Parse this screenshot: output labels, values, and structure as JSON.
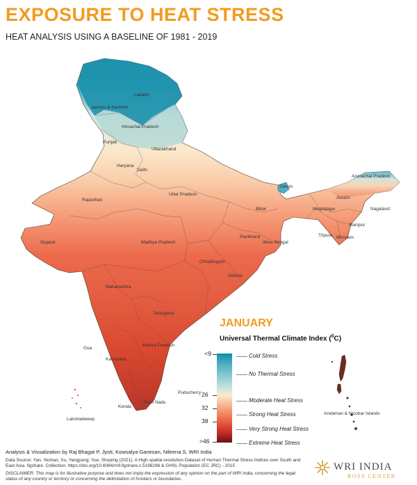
{
  "title": "EXPOSURE TO HEAT STRESS",
  "subtitle": "HEAT ANALYSIS USING A BASELINE OF 1981 - 2019",
  "month": "JANUARY",
  "legend": {
    "title": "Universal Thermal Climate Index (",
    "unit_sup": "0",
    "unit_tail": "C)",
    "ticks": [
      "<9",
      "26",
      "32",
      "38",
      ">46"
    ],
    "categories": [
      "Cold Stress",
      "No Thermal Stress",
      "Moderate Heat Stress",
      "Strong Heat Stress",
      "Very Strong Heat Stress",
      "Extreme Heat Stress"
    ],
    "colors": {
      "cold": "#0f8fa8",
      "neutral": "#fbe9cc",
      "moderate": "#f7b58f",
      "strong": "#ec6a4c",
      "very_strong": "#c9302b",
      "extreme": "#6e0f12"
    }
  },
  "map_labels": {
    "ladakh": "Ladakh",
    "jammu_kashmir": "Jammu & Kashmir",
    "himachal": "Himachal Pradesh",
    "punjab": "Punjab",
    "uttarakhand": "Uttarakhand",
    "haryana": "Haryana",
    "delhi": "Delhi",
    "rajasthan": "Rajasthan",
    "uttar_pradesh": "Uttar Pradesh",
    "bihar": "Bihar",
    "sikkim": "Sikkim",
    "arunachal": "Arunachal Pradesh",
    "assam": "Assam",
    "meghalaya": "Meghalaya",
    "nagaland": "Nagaland",
    "manipur": "Manipur",
    "mizoram": "Mizoram",
    "tripura": "Tripura",
    "gujarat": "Gujarat",
    "madhya_pradesh": "Madhya Pradesh",
    "jharkhand": "Jharkhand",
    "west_bengal": "West Bengal",
    "chhattisgarh": "Chhattisgarh",
    "odisha": "Odisha",
    "maharashtra": "Maharashtra",
    "telangana": "Telangana",
    "andhra": "Andhra Pradesh",
    "goa": "Goa",
    "karnataka": "Karnataka",
    "tamil_nadu": "Tamil Nadu",
    "puducherry": "Puducherry",
    "kerala": "Kerala",
    "lakshadweep": "Lakshadweep",
    "andaman": "Andaman & Nicobar Islands"
  },
  "credit": "Analysis & Visualization by Raj Bhagat P, Jyoti, Kowsalya Ganesan, Nileena S, WRI India",
  "source": "Data Source: Yan, Yechao; Xu, Yangyang; Yue, Shuping (2021): A High-spatial-resolution Dataset of Human Thermal Stress Indices over South and East Asia. figshare. Collection. https://doi.org/10.6084/m9.figshare.c.5196296 & GHSL Population (EC JRC) - 2015",
  "disclaimer": "DISCLAIMER: This map is for illustrative purpose and does not imply the expression of any opinion on the part of WRI India, concerning the legal status of any country or territory or concerning the delimitation of frontiers or boundaries.",
  "logo": {
    "name": "WRI INDIA",
    "sub": "ROSS CENTER"
  }
}
